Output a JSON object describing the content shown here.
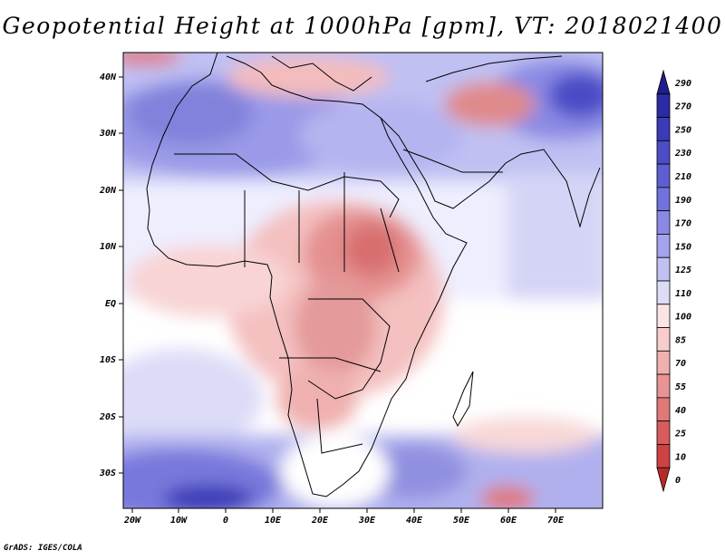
{
  "title": "Geopotential Height at 1000hPa [gpm], VT: 2018021400",
  "credit": "GrADS: IGES/COLA",
  "map": {
    "lat_labels": [
      "40N",
      "30N",
      "20N",
      "10N",
      "EQ",
      "10S",
      "20S",
      "30S"
    ],
    "lon_labels": [
      "20W",
      "10W",
      "0",
      "10E",
      "20E",
      "30E",
      "40E",
      "50E",
      "60E",
      "70E"
    ],
    "lon_range": [
      -22,
      80
    ],
    "lat_range": [
      -37,
      45
    ]
  },
  "colorbar": {
    "labels": [
      "290",
      "270",
      "250",
      "230",
      "210",
      "190",
      "170",
      "150",
      "125",
      "110",
      "100",
      "85",
      "70",
      "55",
      "40",
      "25",
      "10",
      "0"
    ],
    "colors": [
      "#1e1e8c",
      "#2b2ba6",
      "#3b3bb8",
      "#4c4cc6",
      "#5e5ed2",
      "#7272dc",
      "#8a8ae4",
      "#a4a4ec",
      "#c0c0f3",
      "#dcdcf8",
      "#fbe4e4",
      "#f8cccc",
      "#f0b0b0",
      "#e89494",
      "#e07878",
      "#d85c5c",
      "#cd4242",
      "#b82a2a"
    ]
  }
}
